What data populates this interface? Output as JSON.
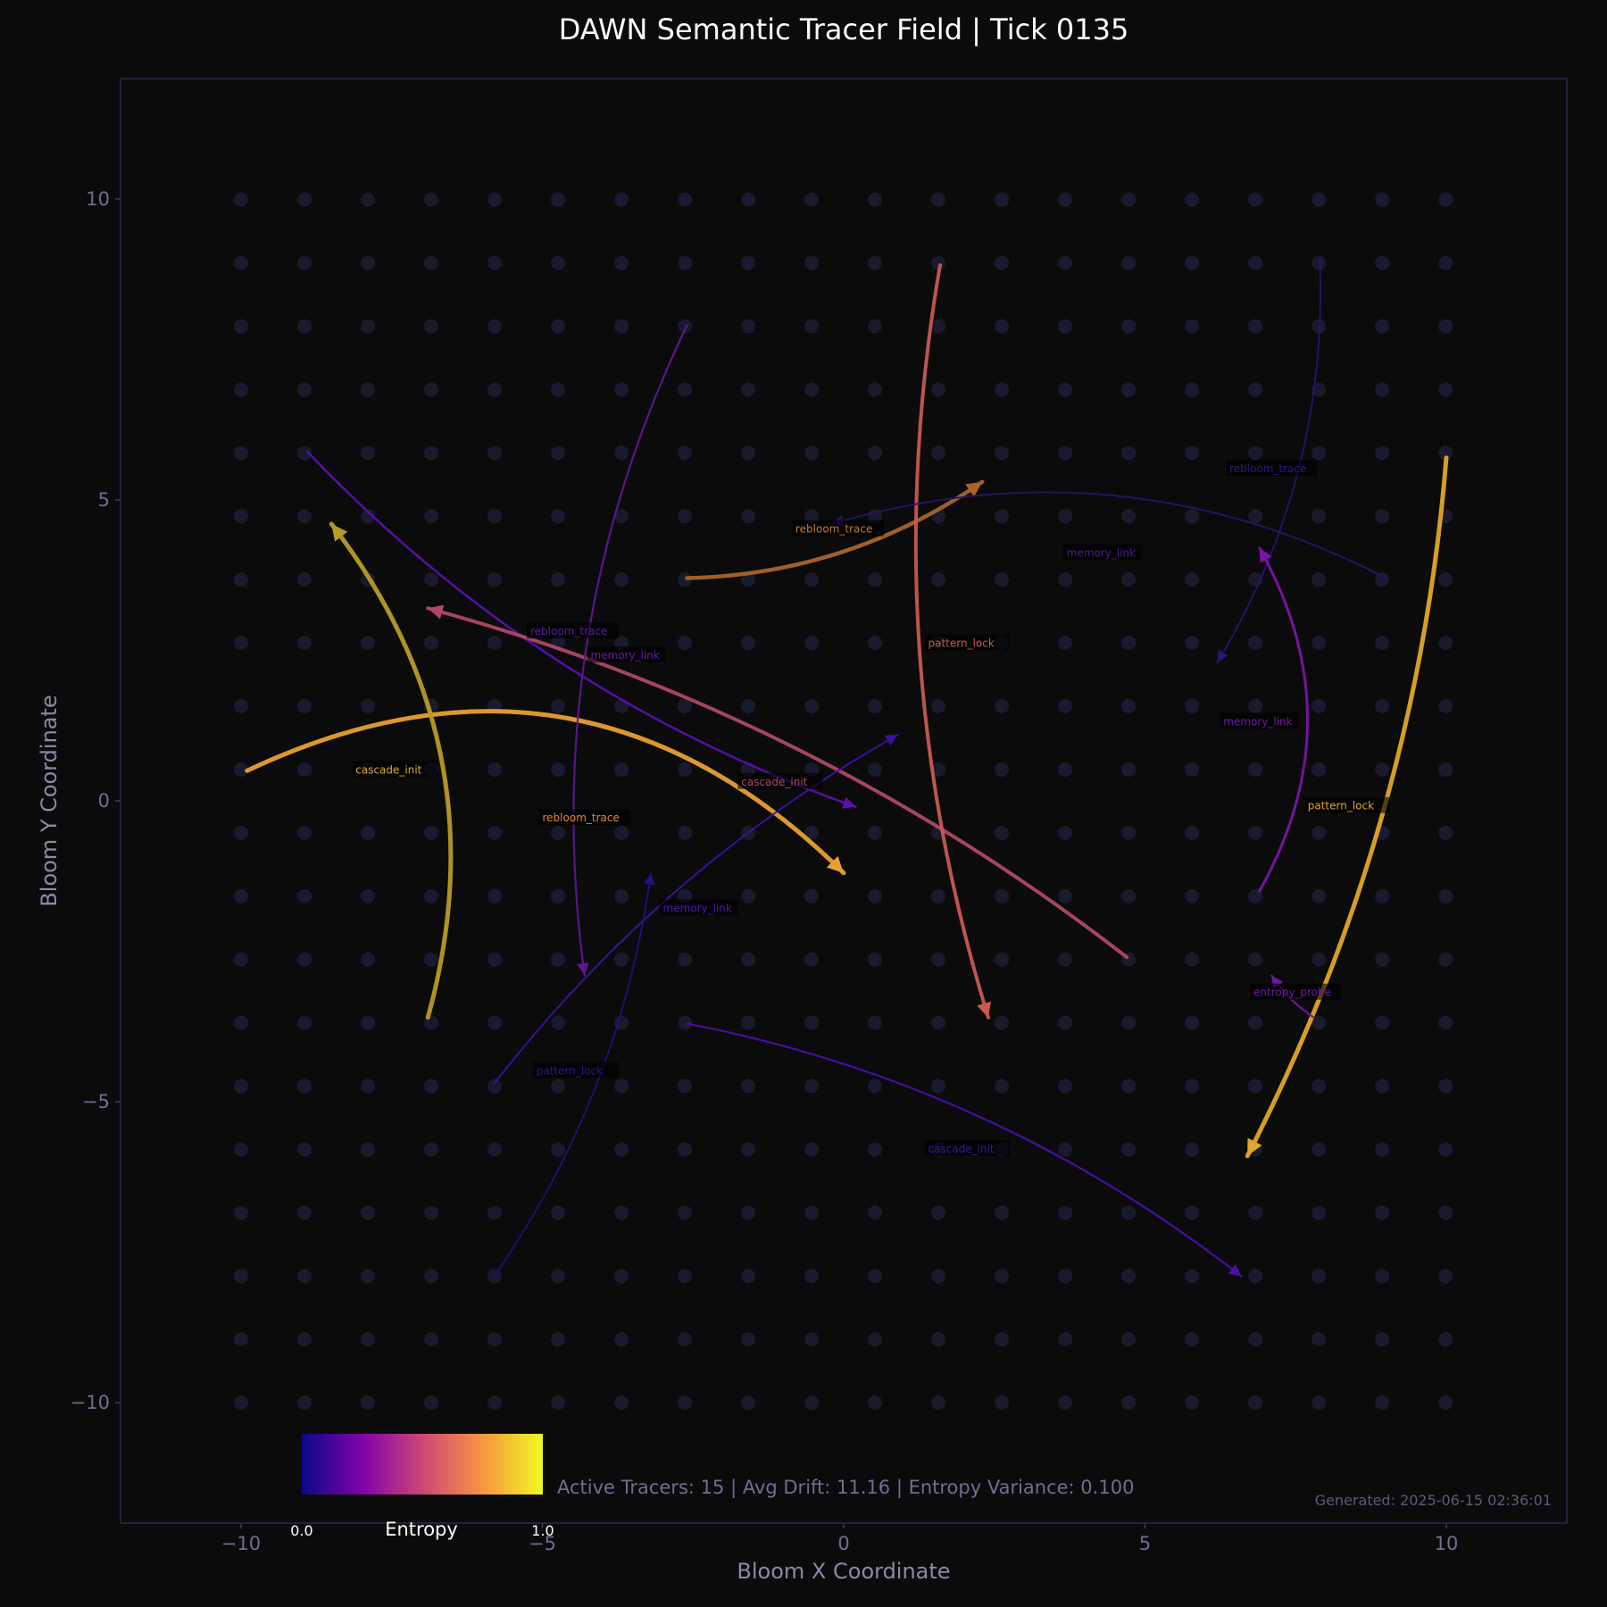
{
  "chart_data": {
    "type": "line",
    "title": "DAWN Semantic Tracer Field | Tick 0135",
    "xlabel": "Bloom X Coordinate",
    "ylabel": "Bloom Y Coordinate",
    "xlim": [
      -12,
      12
    ],
    "ylim": [
      -12,
      12
    ],
    "xticks": [
      -10,
      -5,
      0,
      5,
      10
    ],
    "yticks": [
      -10,
      -5,
      0,
      5,
      10
    ],
    "xtick_labels": [
      "−10",
      "−5",
      "0",
      "5",
      "10"
    ],
    "ytick_labels": [
      "−10",
      "−5",
      "0",
      "5",
      "10"
    ],
    "grid": false,
    "background_dots": {
      "x_range": [
        -10,
        10
      ],
      "y_range": [
        -10,
        10
      ],
      "step": 1.052
    },
    "colorbar": {
      "label": "Entropy",
      "min_label": "0.0",
      "max_label": "1.0",
      "colormap": "plasma"
    },
    "stats_text": "Active Tracers: 15 | Avg Drift: 11.16 | Entropy Variance: 0.100",
    "generated_text": "Generated: 2025-06-15 02:36:01",
    "colors": {
      "background": "#0b0b0b",
      "frame": "#2a2a4a",
      "tick_text": "#6e6e94",
      "label_text": "#8a8aa8",
      "dot": "#1a1a2e",
      "title": "#ffffff"
    },
    "tracers": [
      {
        "from": [
          -9.9,
          0.5
        ],
        "to": [
          0.0,
          -1.2
        ],
        "bend": -0.35,
        "entropy": 0.88,
        "color": "#e8a030",
        "width": 5,
        "arrow": true
      },
      {
        "from": [
          -6.9,
          -3.6
        ],
        "to": [
          -8.5,
          4.6
        ],
        "bend": 0.25,
        "entropy": 0.96,
        "color": "#b89b25",
        "width": 5,
        "arrow": true
      },
      {
        "from": [
          -8.9,
          5.8
        ],
        "to": [
          0.2,
          -0.1
        ],
        "bend": 0.12,
        "entropy": 0.22,
        "color": "#5a10b0",
        "width": 2.5,
        "arrow": true
      },
      {
        "from": [
          4.7,
          -2.6
        ],
        "to": [
          -6.9,
          3.2
        ],
        "bend": 0.1,
        "entropy": 0.56,
        "color": "#b04868",
        "width": 4,
        "arrow": true
      },
      {
        "from": [
          -2.6,
          7.9
        ],
        "to": [
          -4.3,
          -2.9
        ],
        "bend": 0.15,
        "entropy": 0.3,
        "color": "#5e1790",
        "width": 2.2,
        "arrow": true
      },
      {
        "from": [
          -2.6,
          3.7
        ],
        "to": [
          2.3,
          5.3
        ],
        "bend": 0.15,
        "entropy": 0.72,
        "color": "#a8642c",
        "width": 4.5,
        "arrow": true
      },
      {
        "from": [
          1.6,
          8.9
        ],
        "to": [
          2.4,
          -3.6
        ],
        "bend": 0.12,
        "entropy": 0.64,
        "color": "#c85a50",
        "width": 4,
        "arrow": true
      },
      {
        "from": [
          9.0,
          3.7
        ],
        "to": [
          -0.2,
          4.6
        ],
        "bend": 0.2,
        "entropy": 0.18,
        "color": "#2a1366",
        "width": 2,
        "arrow": true
      },
      {
        "from": [
          7.9,
          9.0
        ],
        "to": [
          6.2,
          2.3
        ],
        "bend": -0.15,
        "entropy": 0.1,
        "color": "#2c1278",
        "width": 1.8,
        "arrow": true
      },
      {
        "from": [
          6.9,
          -1.5
        ],
        "to": [
          6.9,
          4.2
        ],
        "bend": 0.28,
        "entropy": 0.38,
        "color": "#7a14a8",
        "width": 3,
        "arrow": true
      },
      {
        "from": [
          10.0,
          5.7
        ],
        "to": [
          6.7,
          -5.9
        ],
        "bend": -0.1,
        "entropy": 0.9,
        "color": "#e0a828",
        "width": 5,
        "arrow": true
      },
      {
        "from": [
          -5.8,
          -4.7
        ],
        "to": [
          0.9,
          1.1
        ],
        "bend": -0.1,
        "entropy": 0.2,
        "color": "#3c12a0",
        "width": 2,
        "arrow": true
      },
      {
        "from": [
          -5.8,
          -7.9
        ],
        "to": [
          -3.2,
          -1.2
        ],
        "bend": 0.12,
        "entropy": 0.06,
        "color": "#1e1480",
        "width": 1.8,
        "arrow": true
      },
      {
        "from": [
          -2.6,
          -3.7
        ],
        "to": [
          6.6,
          -7.9
        ],
        "bend": -0.12,
        "entropy": 0.24,
        "color": "#4810a8",
        "width": 2.2,
        "arrow": true
      },
      {
        "from": [
          7.8,
          -3.6
        ],
        "to": [
          7.1,
          -2.9
        ],
        "bend": -0.1,
        "entropy": 0.34,
        "color": "#6c1a9c",
        "width": 2.2,
        "arrow": true
      }
    ],
    "annotations": [
      {
        "text": "cascade_init",
        "x": -8.1,
        "y": 0.5,
        "color": "#d4aa3a"
      },
      {
        "text": "rebloom_trace",
        "x": -5.0,
        "y": -0.3,
        "color": "#e08a34"
      },
      {
        "text": "rebloom_trace",
        "x": -5.2,
        "y": 2.8,
        "color": "#5a1aa6"
      },
      {
        "text": "memory_link",
        "x": -4.2,
        "y": 2.4,
        "color": "#6818a6"
      },
      {
        "text": "cascade_init",
        "x": -1.7,
        "y": 0.3,
        "color": "#b04868"
      },
      {
        "text": "rebloom_trace",
        "x": -0.8,
        "y": 4.5,
        "color": "#c07a34"
      },
      {
        "text": "pattern_lock",
        "x": 1.4,
        "y": 2.6,
        "color": "#c85a50"
      },
      {
        "text": "memory_link",
        "x": 3.7,
        "y": 4.1,
        "color": "#4c1a8a"
      },
      {
        "text": "rebloom_trace",
        "x": 6.4,
        "y": 5.5,
        "color": "#2a1a7a"
      },
      {
        "text": "memory_link",
        "x": 6.3,
        "y": 1.3,
        "color": "#7218a6"
      },
      {
        "text": "pattern_lock",
        "x": 7.7,
        "y": -0.1,
        "color": "#e0a030"
      },
      {
        "text": "memory_link",
        "x": -3.0,
        "y": -1.8,
        "color": "#4c18b0"
      },
      {
        "text": "entropy_probe",
        "x": 6.8,
        "y": -3.2,
        "color": "#6c1a9c"
      },
      {
        "text": "pattern_lock",
        "x": -5.1,
        "y": -4.5,
        "color": "#2a1690"
      },
      {
        "text": "cascade_init",
        "x": 1.4,
        "y": -5.8,
        "color": "#3c14a0"
      }
    ]
  }
}
